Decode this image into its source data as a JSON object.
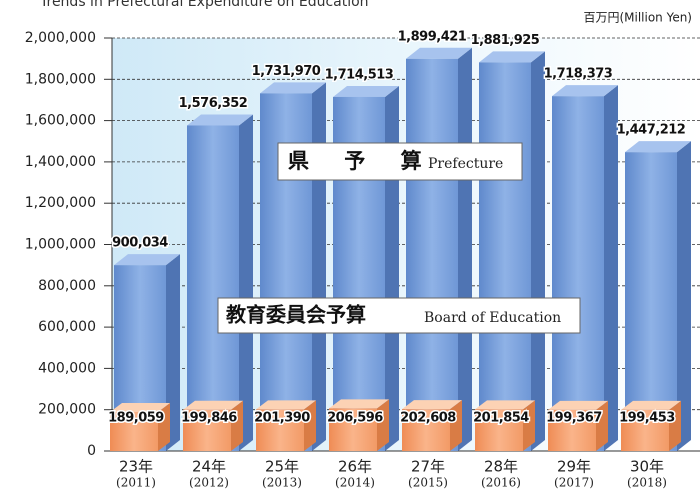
{
  "chart_data": {
    "type": "bar3d_overlap",
    "title": "Trends in Prefectural Expenditure on Education",
    "unit_label": "百万円(Million Yen)",
    "categories": [
      "23年",
      "24年",
      "25年",
      "26年",
      "27年",
      "28年",
      "29年",
      "30年"
    ],
    "category_years": [
      "(2011)",
      "(2012)",
      "(2013)",
      "(2014)",
      "(2015)",
      "(2016)",
      "(2017)",
      "(2018)"
    ],
    "series": [
      {
        "name": "県 予 算",
        "name_en": "Prefecture",
        "color": "#7ea3dc",
        "values": [
          900034,
          1576352,
          1731970,
          1714513,
          1899421,
          1881925,
          1718373,
          1447212
        ],
        "value_labels": [
          "900,034",
          "1,576,352",
          "1,731,970",
          "1,714,513",
          "1,899,421",
          "1,881,925",
          "1,718,373",
          "1,447,212"
        ]
      },
      {
        "name": "教育委員会予算",
        "name_en": "Board of Education",
        "color": "#f5a06c",
        "values": [
          189059,
          199846,
          201390,
          206596,
          202608,
          201854,
          199367,
          199453
        ],
        "value_labels": [
          "189,059",
          "199,846",
          "201,390",
          "206,596",
          "202,608",
          "201,854",
          "199,367",
          "199,453"
        ]
      }
    ],
    "ylim": [
      0,
      2000000
    ],
    "yticks": [
      0,
      {
        "value": 200000,
        "label": "200,000"
      },
      {
        "value": 400000,
        "label": "400,000"
      },
      {
        "value": 600000,
        "label": "600,000"
      },
      {
        "value": 800000,
        "label": "800,000"
      },
      {
        "value": 1000000,
        "label": "1,000,000"
      },
      {
        "value": 1200000,
        "label": "1,200,000"
      },
      {
        "value": 1400000,
        "label": "1,400,000"
      },
      {
        "value": 1600000,
        "label": "1,600,000"
      },
      {
        "value": 1800000,
        "label": "1,800,000"
      },
      {
        "value": 2000000,
        "label": "2,000,000"
      }
    ],
    "grid": true
  }
}
